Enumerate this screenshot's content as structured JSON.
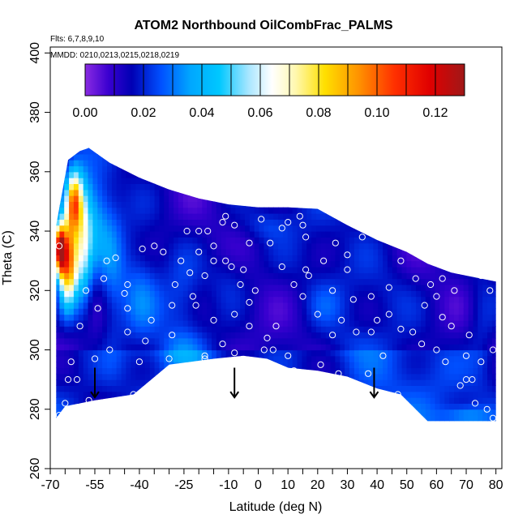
{
  "chart_data": {
    "type": "heatmap",
    "title": "ATOM2 Northbound OilCombFrac_PALMS",
    "flights_label": "Flts: 6,7,8,9,10",
    "dates_label": "MMDD: 0210,0213,0215,0218,0219",
    "xlabel": "Latitude (deg N)",
    "ylabel": "Theta (C)",
    "xlim": [
      -70,
      82
    ],
    "ylim": [
      260,
      402
    ],
    "x_ticks_labeled": [
      -70,
      -55,
      -40,
      -25,
      -10,
      0,
      10,
      20,
      30,
      40,
      50,
      60,
      70,
      80
    ],
    "x_tick_labels": [
      "-70",
      "-55",
      "-40",
      "-25",
      "-10",
      "0",
      "10",
      "20",
      "30",
      "40",
      "50",
      "60",
      "70",
      "80"
    ],
    "x_ticks_minor": [
      -65,
      -60,
      -50,
      -45,
      -35,
      -30,
      -20,
      -15,
      -5,
      5,
      15,
      25,
      35,
      45,
      55,
      65,
      75
    ],
    "y_ticks": [
      260,
      280,
      300,
      320,
      340,
      360,
      380,
      400
    ],
    "y_tick_labels": [
      "260",
      "280",
      "300",
      "320",
      "340",
      "360",
      "380",
      "400"
    ],
    "colorbar": {
      "range": [
        0,
        0.13
      ],
      "ticks": [
        0.0,
        0.02,
        0.04,
        0.06,
        0.08,
        0.1,
        0.12
      ],
      "tick_labels": [
        "0.00",
        "0.02",
        "0.04",
        "0.06",
        "0.08",
        "0.10",
        "0.12"
      ],
      "divider_values": [
        0.01,
        0.02,
        0.03,
        0.04,
        0.05,
        0.06,
        0.07,
        0.08,
        0.09,
        0.1,
        0.11,
        0.12
      ],
      "colors": [
        [
          0.0,
          "#8a2be2"
        ],
        [
          0.008,
          "#3a00d0"
        ],
        [
          0.016,
          "#0000b4"
        ],
        [
          0.026,
          "#0050ff"
        ],
        [
          0.036,
          "#00a6ff"
        ],
        [
          0.046,
          "#00c8ff"
        ],
        [
          0.056,
          "#a8e6ff"
        ],
        [
          0.064,
          "#ffffff"
        ],
        [
          0.072,
          "#fff8b0"
        ],
        [
          0.082,
          "#ffe000"
        ],
        [
          0.094,
          "#ff9000"
        ],
        [
          0.106,
          "#ff3000"
        ],
        [
          0.118,
          "#e00000"
        ],
        [
          0.13,
          "#a01818"
        ]
      ]
    },
    "coverage_top": [
      [
        -68,
        342
      ],
      [
        -64,
        364
      ],
      [
        -60,
        367
      ],
      [
        -57,
        368
      ],
      [
        -50,
        363
      ],
      [
        -40,
        358
      ],
      [
        -30,
        354
      ],
      [
        -20,
        351
      ],
      [
        -10,
        349
      ],
      [
        0,
        348
      ],
      [
        10,
        348
      ],
      [
        20,
        347.5
      ],
      [
        30,
        342
      ],
      [
        40,
        337
      ],
      [
        50,
        333
      ],
      [
        57,
        329
      ],
      [
        65,
        326
      ],
      [
        75,
        324
      ],
      [
        80,
        323
      ]
    ],
    "coverage_bottom": [
      [
        80,
        276
      ],
      [
        57,
        276
      ],
      [
        48,
        285
      ],
      [
        40,
        287
      ],
      [
        30,
        291
      ],
      [
        20,
        293
      ],
      [
        10,
        294
      ],
      [
        3,
        297
      ],
      [
        -5,
        298
      ],
      [
        -15,
        297
      ],
      [
        -30,
        295
      ],
      [
        -42,
        285
      ],
      [
        -55,
        283
      ],
      [
        -65,
        281
      ],
      [
        -68,
        277
      ]
    ],
    "hotspots": [
      {
        "lat": -67,
        "theta": 334,
        "value": 0.12,
        "s_lat": 2.0,
        "s_theta": 8
      },
      {
        "lat": -64,
        "theta": 330,
        "value": 0.1,
        "s_lat": 3.0,
        "s_theta": 14
      },
      {
        "lat": -62,
        "theta": 350,
        "value": 0.08,
        "s_lat": 2.5,
        "s_theta": 10
      },
      {
        "lat": -59,
        "theta": 336,
        "value": 0.05,
        "s_lat": 3.0,
        "s_theta": 20
      },
      {
        "lat": -55,
        "theta": 345,
        "value": 0.03,
        "s_lat": 5.0,
        "s_theta": 15
      },
      {
        "lat": -49,
        "theta": 325,
        "value": 0.022,
        "s_lat": 4.0,
        "s_theta": 25
      },
      {
        "lat": -40,
        "theta": 318,
        "value": 0.022,
        "s_lat": 6.0,
        "s_theta": 15
      },
      {
        "lat": -25,
        "theta": 318,
        "value": 0.02,
        "s_lat": 6.0,
        "s_theta": 15
      },
      {
        "lat": -26,
        "theta": 300,
        "value": 0.022,
        "s_lat": 8.0,
        "s_theta": 6
      },
      {
        "lat": -10,
        "theta": 325,
        "value": 0.02,
        "s_lat": 8.0,
        "s_theta": 10
      },
      {
        "lat": 3,
        "theta": 342,
        "value": 0.02,
        "s_lat": 8.0,
        "s_theta": 5
      },
      {
        "lat": 22,
        "theta": 315,
        "value": 0.018,
        "s_lat": 6.0,
        "s_theta": 8
      },
      {
        "lat": 30,
        "theta": 302,
        "value": 0.016,
        "s_lat": 10.0,
        "s_theta": 5
      },
      {
        "lat": 45,
        "theta": 320,
        "value": 0.015,
        "s_lat": 8.0,
        "s_theta": 8
      },
      {
        "lat": 75,
        "theta": 310,
        "value": 0.02,
        "s_lat": 5.0,
        "s_theta": 20
      },
      {
        "lat": 70,
        "theta": 278,
        "value": 0.028,
        "s_lat": 8.0,
        "s_theta": 3
      }
    ],
    "observations": [
      [
        -67,
        278
      ],
      [
        -65,
        282
      ],
      [
        -64,
        290
      ],
      [
        -61,
        290
      ],
      [
        -57,
        283
      ],
      [
        -55,
        297
      ],
      [
        -42,
        285
      ],
      [
        -67,
        335
      ],
      [
        -52,
        324
      ],
      [
        -51,
        330
      ],
      [
        -48,
        331
      ],
      [
        -44,
        322
      ],
      [
        -39,
        334
      ],
      [
        -35,
        335
      ],
      [
        -45,
        319
      ],
      [
        -44,
        314
      ],
      [
        -44,
        306
      ],
      [
        -29,
        315
      ],
      [
        -28,
        322
      ],
      [
        -29,
        305
      ],
      [
        -30,
        297
      ],
      [
        -32,
        333
      ],
      [
        -24,
        340
      ],
      [
        -20,
        340
      ],
      [
        -17,
        340
      ],
      [
        -15,
        335
      ],
      [
        -15,
        330
      ],
      [
        -12,
        343
      ],
      [
        -11,
        345
      ],
      [
        -8,
        342
      ],
      [
        -3,
        336
      ],
      [
        1,
        344
      ],
      [
        4,
        336
      ],
      [
        8,
        341
      ],
      [
        10,
        343
      ],
      [
        14,
        345
      ],
      [
        15,
        342
      ],
      [
        16,
        338
      ],
      [
        -5,
        327
      ],
      [
        -6,
        322
      ],
      [
        -11,
        330
      ],
      [
        -3,
        316
      ],
      [
        -18,
        325
      ],
      [
        -22,
        318
      ],
      [
        -21,
        315
      ],
      [
        -8,
        312
      ],
      [
        -3,
        308
      ],
      [
        3,
        304
      ],
      [
        5,
        300
      ],
      [
        -18,
        298
      ],
      [
        -18,
        297
      ],
      [
        -8,
        299
      ],
      [
        2,
        300
      ],
      [
        10,
        298
      ],
      [
        12,
        293
      ],
      [
        21,
        295
      ],
      [
        27,
        292
      ],
      [
        37,
        292
      ],
      [
        47,
        285
      ],
      [
        16,
        327
      ],
      [
        17,
        325
      ],
      [
        25,
        320
      ],
      [
        30,
        327
      ],
      [
        32,
        317
      ],
      [
        38,
        318
      ],
      [
        44,
        321
      ],
      [
        48,
        307
      ],
      [
        53,
        324
      ],
      [
        58,
        322
      ],
      [
        60,
        318
      ],
      [
        62,
        311
      ],
      [
        65,
        308
      ],
      [
        70,
        298
      ],
      [
        75,
        296
      ],
      [
        72,
        290
      ],
      [
        68,
        288
      ],
      [
        73,
        282
      ],
      [
        77,
        280
      ],
      [
        79,
        277
      ],
      [
        75,
        325
      ],
      [
        78,
        320
      ],
      [
        62,
        324
      ],
      [
        35,
        338
      ],
      [
        38,
        340
      ],
      [
        30,
        332
      ],
      [
        33,
        306
      ],
      [
        38,
        306
      ],
      [
        44,
        312
      ],
      [
        52,
        306
      ],
      [
        55,
        302
      ],
      [
        60,
        300
      ],
      [
        63,
        296
      ],
      [
        70,
        290
      ],
      [
        -23,
        326
      ],
      [
        -9,
        328
      ],
      [
        -1,
        320
      ],
      [
        15,
        318
      ],
      [
        28,
        310
      ],
      [
        40,
        310
      ],
      [
        8,
        328
      ],
      [
        12,
        322
      ],
      [
        20,
        312
      ],
      [
        25,
        305
      ],
      [
        42,
        298
      ],
      [
        -15,
        310
      ],
      [
        -36,
        310
      ],
      [
        -40,
        296
      ],
      [
        -63,
        296
      ],
      [
        -50,
        300
      ],
      [
        -38,
        303
      ],
      [
        -12,
        302
      ],
      [
        6,
        308
      ],
      [
        22,
        330
      ],
      [
        26,
        336
      ],
      [
        -20,
        333
      ],
      [
        -26,
        330
      ],
      [
        48,
        330
      ],
      [
        56,
        315
      ],
      [
        66,
        320
      ],
      [
        71,
        305
      ],
      [
        79,
        300
      ],
      [
        -60,
        308
      ],
      [
        -54,
        314
      ],
      [
        -58,
        320
      ]
    ],
    "arrow_latitudes": [
      -55,
      -8,
      39
    ],
    "arrow_theta_range": [
      294,
      284
    ]
  }
}
